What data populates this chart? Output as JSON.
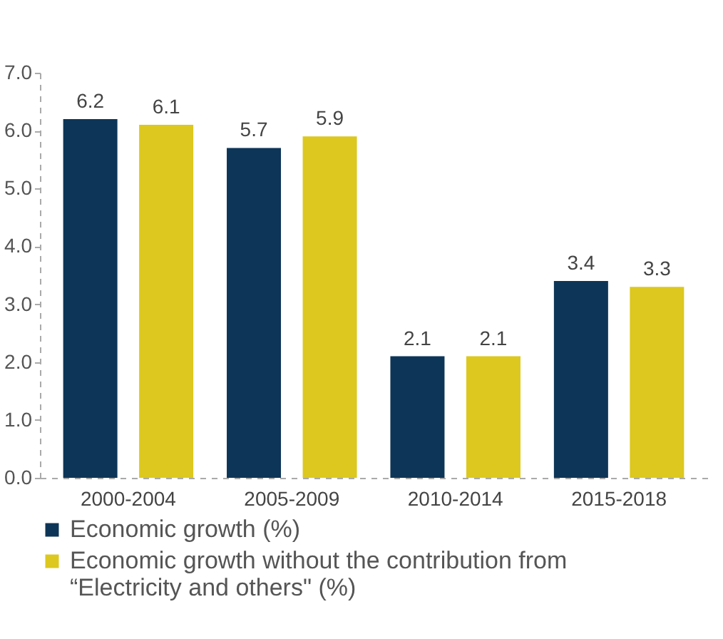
{
  "chart_data": {
    "type": "bar",
    "categories": [
      "2000-2004",
      "2005-2009",
      "2010-2014",
      "2015-2018"
    ],
    "series": [
      {
        "name": "Economic growth (%)",
        "color": "#0d3557",
        "values": [
          6.2,
          5.7,
          2.1,
          3.4
        ]
      },
      {
        "name": "Economic growth without the contribution from “Electricity and others\" (%)",
        "color": "#dcc81e",
        "values": [
          6.1,
          5.9,
          2.1,
          3.3
        ]
      }
    ],
    "ylim": [
      0,
      7
    ],
    "yticks": [
      {
        "value": 0,
        "label": "0.0"
      },
      {
        "value": 1,
        "label": "1.0"
      },
      {
        "value": 2,
        "label": "2.0"
      },
      {
        "value": 3,
        "label": "3.0"
      },
      {
        "value": 4,
        "label": "4.0"
      },
      {
        "value": 5,
        "label": "5.0"
      },
      {
        "value": 6,
        "label": "6.0"
      },
      {
        "value": 7,
        "label": "7.0"
      }
    ],
    "grid": false,
    "legend": "bottom",
    "data_labels": true
  }
}
